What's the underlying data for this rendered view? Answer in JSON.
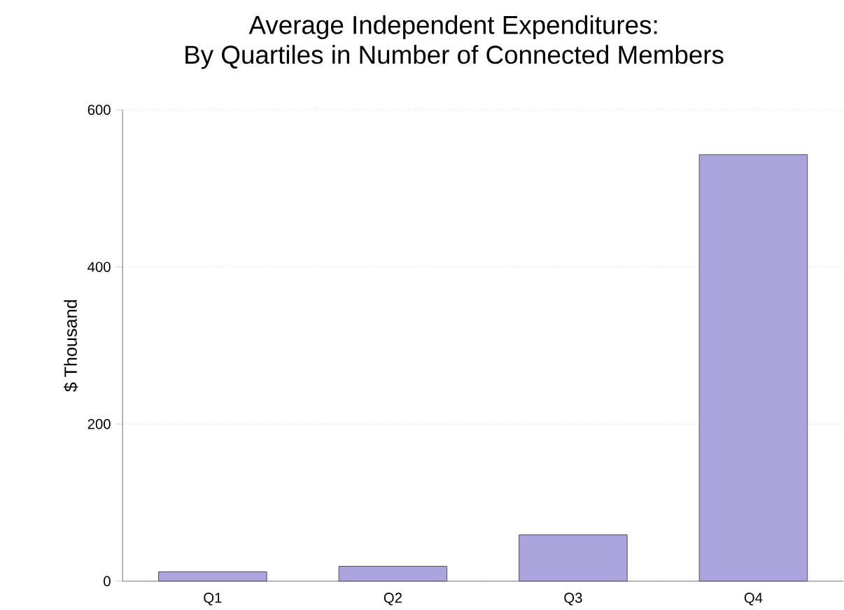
{
  "chart_data": {
    "type": "bar",
    "title": "Average Independent Expenditures:",
    "subtitle": "By Quartiles in Number of Connected Members",
    "ylabel": "$ Thousand",
    "categories": [
      "Q1",
      "Q2",
      "Q3",
      "Q4"
    ],
    "values": [
      12,
      19,
      59,
      543
    ],
    "color": "#a9a5dc",
    "ylim": [
      0,
      600
    ],
    "yticks": [
      0,
      200,
      400,
      600
    ],
    "grid": "y"
  }
}
